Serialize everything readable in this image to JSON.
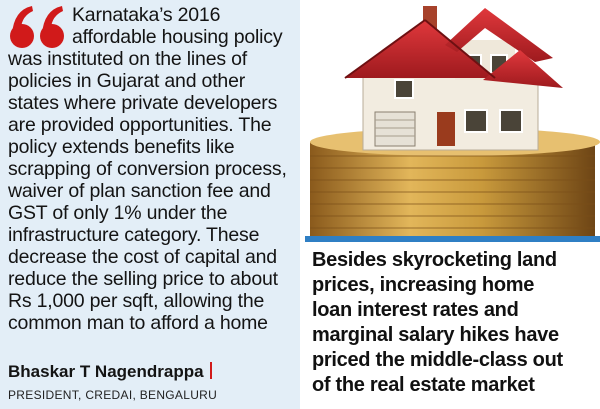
{
  "quote": {
    "lines": [
      "Karnataka’s 2016",
      "affordable housing policy",
      "was instituted on the lines of",
      "policies in Gujarat and other",
      "states where private developers",
      "are provided opportunities. The",
      "policy extends benefits like",
      "scrapping of conversion process,",
      "waiver of plan sanction fee and",
      "GST of only 1% under the",
      "infrastructure category. These",
      "decrease the cost of capital and",
      "reduce the selling price to about",
      "Rs 1,000 per sqft, allowing the",
      "common man to afford a home"
    ],
    "attribution_name": "Bhaskar T Nagendrappa",
    "attribution_title": "PRESIDENT, CREDAI, BENGALURU"
  },
  "caption": {
    "lines": [
      "Besides skyrocketing land",
      "prices, increasing home",
      "loan interest rates and",
      "marginal salary hikes have",
      "priced the middle-class out",
      "of the real estate market"
    ]
  },
  "colors": {
    "quote_panel_bg": "#e3eef7",
    "quote_mark": "#d11a1a",
    "accent_rule": "#2f7fc4",
    "roof": "#c8262a",
    "coin_gold": "#c99a3c"
  }
}
